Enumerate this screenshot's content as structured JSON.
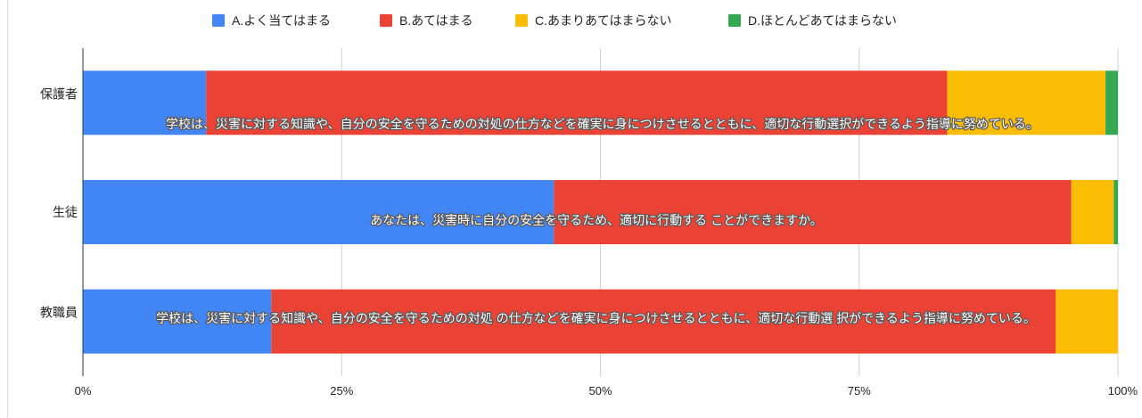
{
  "chart_data": {
    "type": "bar",
    "orientation": "horizontal",
    "stacked": "percent",
    "title": "",
    "xlabel": "",
    "ylabel": "",
    "xlim": [
      0,
      100
    ],
    "grid": true,
    "legend_position": "top",
    "categories": [
      "保護者",
      "生徒",
      "教職員"
    ],
    "x_ticks": [
      "0%",
      "25%",
      "50%",
      "75%",
      "100%"
    ],
    "x_tick_values": [
      0,
      25,
      50,
      75,
      100
    ],
    "series": [
      {
        "name": "A.よく当てはまる",
        "color": "#4285f4",
        "values": [
          11.9,
          45.5,
          18.2
        ]
      },
      {
        "name": "B.あてはまる",
        "color": "#ea4335",
        "values": [
          71.6,
          50.0,
          75.8
        ]
      },
      {
        "name": "C.あまりあてはまらない",
        "color": "#fbbc04",
        "values": [
          15.3,
          4.1,
          6.0
        ]
      },
      {
        "name": "D.ほとんどあてはまらない",
        "color": "#34a853",
        "values": [
          1.2,
          0.4,
          0.0
        ]
      }
    ],
    "annotations": [
      "学校は、災害に対する知識や、自分の安全を守るための対処の仕方などを確実に身につけさせるとともに、適切な行動選択ができるよう指導に努めている。",
      "あなたは、災害時に自分の安全を守るため、適切に行動する ことができますか。",
      "学校は、災害に対する知識や、自分の安全を守るための対処 の仕方などを確実に身につけさせるとともに、適切な行動選 択ができるよう指導に努めている。"
    ]
  }
}
